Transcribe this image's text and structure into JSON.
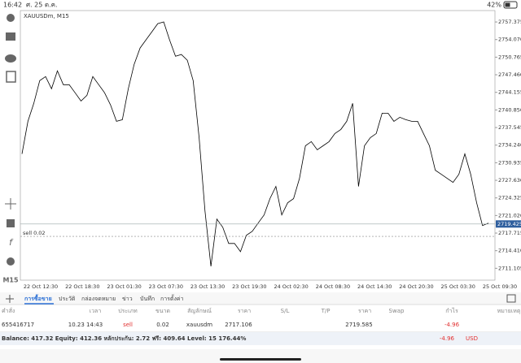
{
  "status_bar": {
    "time": "16:42",
    "date": "ศ. 25 ต.ค.",
    "battery": "42%"
  },
  "chart_data": {
    "type": "line",
    "title": "XAUUSDm, M15",
    "color": "#000000",
    "x_labels": [
      "22 Oct 12:30",
      "22 Oct 18:30",
      "23 Oct 01:30",
      "23 Oct 07:30",
      "23 Oct 13:30",
      "23 Oct 19:30",
      "24 Oct 02:30",
      "24 Oct 08:30",
      "24 Oct 14:30",
      "24 Oct 20:30",
      "25 Oct 03:30",
      "25 Oct 09:30"
    ],
    "values": [
      2732.59,
      2738.71,
      2742.08,
      2746.36,
      2747.12,
      2744.83,
      2748.2,
      2745.59,
      2745.59,
      2744.06,
      2742.53,
      2743.6,
      2747.12,
      2745.59,
      2744.06,
      2741.77,
      2738.71,
      2739.02,
      2744.83,
      2749.42,
      2752.48,
      2754.01,
      2755.54,
      2757.07,
      2757.38,
      2754.01,
      2750.95,
      2751.26,
      2750.19,
      2746.36,
      2735.65,
      2721.88,
      2711.48,
      2720.35,
      2718.82,
      2715.76,
      2715.76,
      2714.23,
      2717.29,
      2718.06,
      2719.59,
      2721.12,
      2724.18,
      2726.47,
      2721.12,
      2723.41,
      2724.18,
      2728.0,
      2734.12,
      2734.89,
      2733.36,
      2734.12,
      2734.89,
      2736.42,
      2737.18,
      2738.71,
      2742.08,
      2726.47,
      2734.12,
      2735.65,
      2736.42,
      2740.24,
      2740.24,
      2738.71,
      2739.48,
      2739.02,
      2738.71,
      2738.71,
      2736.42,
      2734.12,
      2729.53,
      2728.77,
      2728.0,
      2727.24,
      2728.77,
      2732.59,
      2728.77,
      2723.41,
      2719.13,
      2719.59
    ],
    "ylim": [
      2708.87,
      2759.52
    ],
    "yticks": [
      2757.375,
      {
        "value": 2754.07,
        "label": "2754.070"
      },
      2750.765,
      {
        "value": 2747.46,
        "label": "2747.460"
      },
      2744.155,
      {
        "value": 2740.85,
        "label": "2740.850"
      },
      2737.545,
      {
        "value": 2734.24,
        "label": "2734.240"
      },
      2730.935,
      {
        "value": 2727.63,
        "label": "2727.630"
      },
      2724.325,
      {
        "value": 2721.02,
        "label": "2721.020"
      },
      2717.715,
      {
        "value": 2714.41,
        "label": "2714.410"
      },
      2711.105
    ],
    "current_price": 2719.425,
    "order_label": "sell 0.02"
  },
  "toolbar": {
    "timeframe": "M15"
  },
  "tabs": [
    "การซื้อขาย",
    "ประวัติ",
    "กล่องจดหมาย",
    "ข่าว",
    "บันทึก",
    "การตั้งค่า"
  ],
  "table": {
    "columns": [
      "คำสั่ง",
      "เวลา",
      "ประเภท",
      "ขนาด",
      "สัญลักษณ์",
      "ราคา",
      "S/L",
      "T/P",
      "ราคา",
      "Swap",
      "กำไร",
      "หมายเหตุ"
    ],
    "rows": [
      {
        "order": "655416717",
        "time": "10.23 14:43",
        "type": "sell",
        "volume": 0.02,
        "symbol": "xauusdm",
        "open_price": 2717.106,
        "price": 2719.585,
        "profit": -4.96
      }
    ]
  },
  "balance": {
    "text": "Balance: 417.32 Equity: 412.36 หลักประกัน: 2.72 ฟรี: 409.64 Level: 15 176.44%",
    "profit": -4.96,
    "currency": "USD"
  }
}
